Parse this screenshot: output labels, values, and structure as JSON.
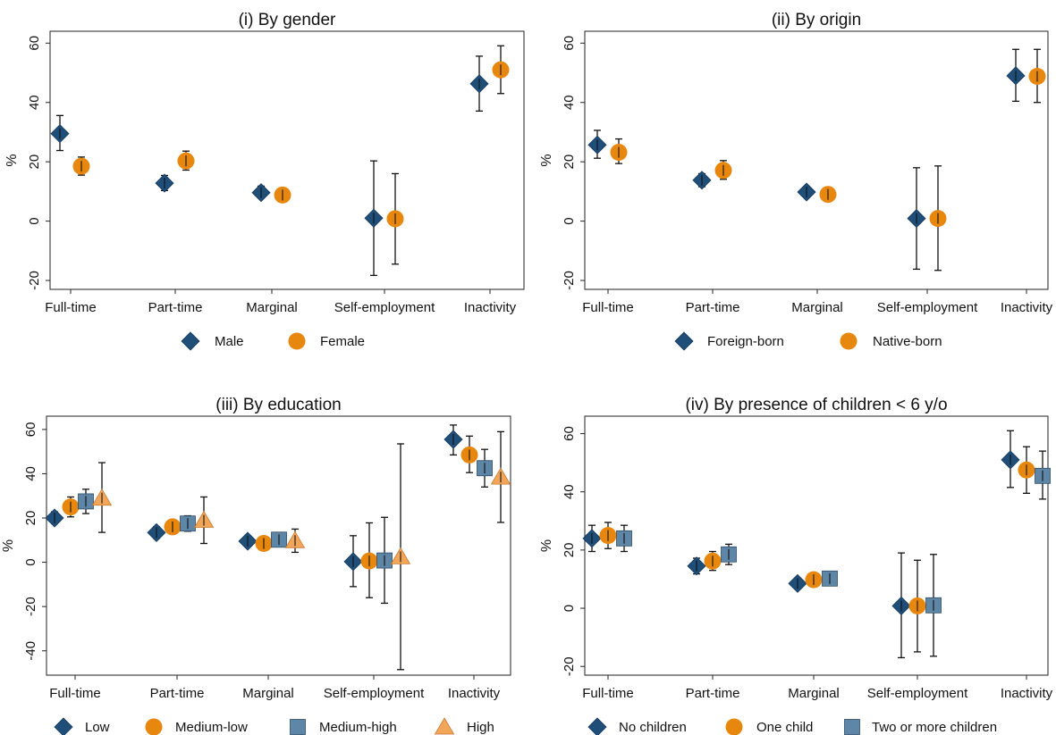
{
  "colors": {
    "navy": "#1f4e79",
    "orange": "#e8870e",
    "steel": "#5e86a6",
    "lightorange": "#f2a65a",
    "errorbar": "#111111"
  },
  "chart_data": [
    {
      "type": "scatter",
      "title": "(i) By gender",
      "ylabel": "%",
      "ylim": [
        -23,
        64
      ],
      "yticks": [
        -20,
        0,
        20,
        40,
        60
      ],
      "categories": [
        "Full-time",
        "Part-time",
        "Marginal",
        "Self-employment",
        "Inactivity"
      ],
      "legend_position": "bottom",
      "series": [
        {
          "name": "Male",
          "marker": "diamond",
          "color": "#1f4e79",
          "values": [
            29.5,
            12.8,
            9.6,
            1.0,
            46.3
          ],
          "lower": [
            23.8,
            10.3,
            7.8,
            -18.3,
            37.1
          ],
          "upper": [
            35.6,
            15.4,
            11.8,
            20.3,
            55.6
          ]
        },
        {
          "name": "Female",
          "marker": "circle",
          "color": "#e8870e",
          "values": [
            18.5,
            20.3,
            8.8,
            0.8,
            51.0
          ],
          "lower": [
            15.5,
            17.2,
            7.4,
            -14.5,
            43.0
          ],
          "upper": [
            21.6,
            23.6,
            10.4,
            16.0,
            59.1
          ]
        }
      ]
    },
    {
      "type": "scatter",
      "title": "(ii) By origin",
      "ylabel": "%",
      "ylim": [
        -23,
        64
      ],
      "yticks": [
        -20,
        0,
        20,
        40,
        60
      ],
      "categories": [
        "Full-time",
        "Part-time",
        "Marginal",
        "Self-employment",
        "Inactivity"
      ],
      "legend_position": "bottom",
      "series": [
        {
          "name": "Foreign-born",
          "marker": "diamond",
          "color": "#1f4e79",
          "values": [
            25.7,
            13.8,
            9.8,
            0.9,
            49.0
          ],
          "lower": [
            21.2,
            11.6,
            8.1,
            -16.2,
            40.4
          ],
          "upper": [
            30.6,
            16.0,
            11.6,
            18.0,
            57.9
          ]
        },
        {
          "name": "Native-born",
          "marker": "circle",
          "color": "#e8870e",
          "values": [
            23.2,
            17.1,
            9.0,
            0.9,
            48.8
          ],
          "lower": [
            19.4,
            14.1,
            7.6,
            -16.6,
            40.0
          ],
          "upper": [
            27.7,
            20.4,
            10.7,
            18.6,
            57.9
          ]
        }
      ]
    },
    {
      "type": "scatter",
      "title": "(iii) By education",
      "ylabel": "%",
      "ylim": [
        -51,
        66
      ],
      "yticks": [
        -40,
        -20,
        0,
        20,
        40,
        60
      ],
      "categories": [
        "Full-time",
        "Part-time",
        "Marginal",
        "Self-employment",
        "Inactivity"
      ],
      "legend_position": "bottom",
      "series": [
        {
          "name": "Low",
          "marker": "diamond",
          "color": "#1f4e79",
          "values": [
            20.0,
            13.4,
            9.5,
            0.3,
            55.5
          ],
          "lower": [
            17.5,
            10.8,
            7.5,
            -11.0,
            48.5
          ],
          "upper": [
            22.8,
            16.0,
            11.5,
            12.0,
            62.0
          ]
        },
        {
          "name": "Medium-low",
          "marker": "circle",
          "color": "#e8870e",
          "values": [
            25.0,
            16.0,
            8.5,
            0.6,
            48.5
          ],
          "lower": [
            20.5,
            13.5,
            7.0,
            -16.0,
            40.5
          ],
          "upper": [
            29.5,
            19.0,
            10.0,
            17.8,
            57.0
          ]
        },
        {
          "name": "Medium-high",
          "marker": "square",
          "color": "#5e86a6",
          "values": [
            27.5,
            17.5,
            10.2,
            0.8,
            42.5
          ],
          "lower": [
            22.0,
            14.0,
            7.0,
            -18.5,
            34.0
          ],
          "upper": [
            33.0,
            21.0,
            13.5,
            20.3,
            51.0
          ]
        },
        {
          "name": "High",
          "marker": "triangle",
          "color": "#f2a65a",
          "values": [
            29.0,
            19.0,
            9.8,
            2.5,
            38.5
          ],
          "lower": [
            13.5,
            8.5,
            4.5,
            -48.5,
            18.0
          ],
          "upper": [
            45.0,
            29.5,
            15.0,
            53.5,
            59.0
          ]
        }
      ]
    },
    {
      "type": "scatter",
      "title": "(iv) By presence of children < 6 y/o",
      "ylabel": "%",
      "ylim": [
        -23,
        66
      ],
      "yticks": [
        -20,
        0,
        20,
        40,
        60
      ],
      "categories": [
        "Full-time",
        "Part-time",
        "Marginal",
        "Self-employment",
        "Inactivity"
      ],
      "legend_position": "bottom",
      "series": [
        {
          "name": "No children",
          "marker": "diamond",
          "color": "#1f4e79",
          "values": [
            24.0,
            14.5,
            8.5,
            0.8,
            51.0
          ],
          "lower": [
            19.5,
            11.8,
            6.8,
            -17.0,
            41.5
          ],
          "upper": [
            28.5,
            17.2,
            10.2,
            19.0,
            61.0
          ]
        },
        {
          "name": "One child",
          "marker": "circle",
          "color": "#e8870e",
          "values": [
            25.0,
            16.2,
            9.8,
            0.8,
            47.5
          ],
          "lower": [
            20.5,
            13.0,
            8.0,
            -15.0,
            39.5
          ],
          "upper": [
            29.5,
            19.5,
            11.8,
            16.5,
            55.5
          ]
        },
        {
          "name": "Two or more children",
          "marker": "square",
          "color": "#5e86a6",
          "values": [
            24.0,
            18.5,
            10.2,
            1.0,
            45.5
          ],
          "lower": [
            19.5,
            15.0,
            8.0,
            -16.5,
            37.5
          ],
          "upper": [
            28.5,
            22.0,
            12.5,
            18.5,
            54.0
          ]
        }
      ]
    }
  ]
}
